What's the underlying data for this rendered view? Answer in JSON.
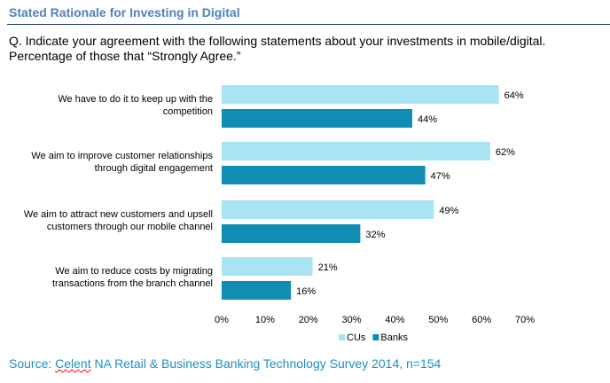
{
  "header": {
    "title": "Stated Rationale for Investing in Digital",
    "question_line1": "Q. Indicate your agreement with the following statements about your investments in mobile/digital.",
    "question_line2": "Percentage of those that “Strongly Agree.”"
  },
  "chart_data": {
    "type": "bar",
    "orientation": "horizontal",
    "categories": [
      [
        "We have to do it to keep up with the",
        "competition"
      ],
      [
        "We aim to improve customer relationships",
        "through digital engagement"
      ],
      [
        "We aim to attract new customers and upsell",
        "customers through our mobile channel"
      ],
      [
        "We aim to reduce costs by migrating",
        "transactions from the branch channel"
      ]
    ],
    "series": [
      {
        "name": "CUs",
        "values": [
          64,
          62,
          49,
          21
        ],
        "color": "#a8e4f2"
      },
      {
        "name": "Banks",
        "values": [
          44,
          47,
          32,
          16
        ],
        "color": "#0f8db3"
      }
    ],
    "xlim": [
      0,
      70
    ],
    "xticks": [
      "0%",
      "10%",
      "20%",
      "30%",
      "40%",
      "50%",
      "60%",
      "70%"
    ],
    "value_suffix": "%",
    "grid": false,
    "legend": "bottom"
  },
  "footer": {
    "source_prefix": "Source: ",
    "source_brand": "Celent",
    "source_rest": " NA Retail & Business Banking Technology Survey 2014, n=154"
  }
}
